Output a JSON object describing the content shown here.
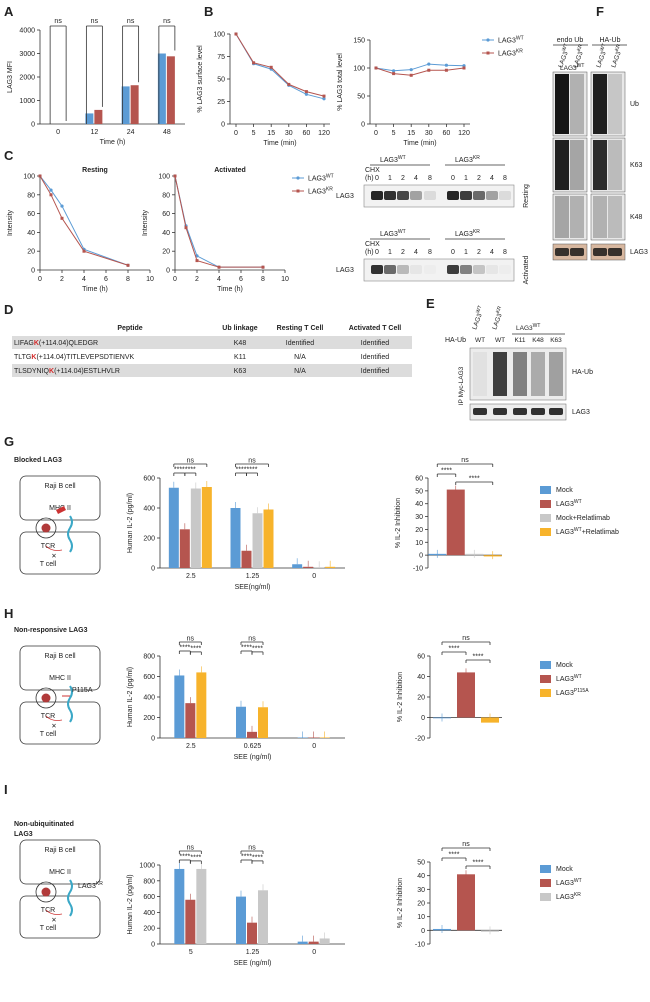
{
  "panels": {
    "A": "A",
    "B": "B",
    "C": "C",
    "D": "D",
    "E": "E",
    "F": "F",
    "G": "G",
    "H": "H",
    "I": "I"
  },
  "colors": {
    "blue": "#5b9bd5",
    "red": "#b5554f",
    "gray": "#c8c8c8",
    "orange": "#f7b32b"
  },
  "legend": {
    "wt": "LAG3",
    "wt_sup": "WT",
    "kr": "LAG3",
    "kr_sup": "KR"
  },
  "chart_data": [
    {
      "id": "A",
      "type": "bar",
      "categories": [
        "0",
        "12",
        "24",
        "48"
      ],
      "series": [
        {
          "name": "LAG3WT",
          "values": [
            0,
            450,
            1600,
            3000
          ]
        },
        {
          "name": "LAG3KR",
          "values": [
            0,
            600,
            1650,
            2880
          ]
        }
      ],
      "ylabel": "LAG3 MFI",
      "xlabel": "Time (h)",
      "ylim": [
        0,
        4000
      ],
      "yticks": [
        "0",
        "1000",
        "2000",
        "3000",
        "4000"
      ],
      "sig": [
        "ns",
        "ns",
        "ns",
        "ns"
      ]
    },
    {
      "id": "B1",
      "type": "line",
      "x": [
        "0",
        "5",
        "15",
        "30",
        "60",
        "120"
      ],
      "series": [
        {
          "name": "LAG3WT",
          "values": [
            100,
            67,
            61,
            43,
            33,
            28
          ]
        },
        {
          "name": "LAG3KR",
          "values": [
            100,
            68,
            63,
            44,
            36,
            31
          ]
        }
      ],
      "ylabel": "% LAG3 surface level",
      "xlabel": "Time (min)",
      "ylim": [
        0,
        100
      ],
      "yticks": [
        "0",
        "25",
        "50",
        "75",
        "100"
      ]
    },
    {
      "id": "B2",
      "type": "line",
      "x": [
        "0",
        "5",
        "15",
        "30",
        "60",
        "120"
      ],
      "series": [
        {
          "name": "LAG3WT",
          "values": [
            100,
            95,
            97,
            107,
            105,
            104
          ]
        },
        {
          "name": "LAG3KR",
          "values": [
            100,
            90,
            87,
            96,
            96,
            100
          ]
        }
      ],
      "ylabel": "% LAG3 total level",
      "xlabel": "Time (min)",
      "ylim": [
        0,
        150
      ],
      "yticks": [
        "0",
        "50",
        "100",
        "150"
      ]
    },
    {
      "id": "C1",
      "type": "line",
      "title": "Resting",
      "x": [
        0,
        1,
        2,
        4,
        8
      ],
      "series": [
        {
          "name": "LAG3WT",
          "values": [
            100,
            85,
            68,
            22,
            5
          ]
        },
        {
          "name": "LAG3KR",
          "values": [
            100,
            80,
            55,
            20,
            5
          ]
        }
      ],
      "ylabel": "Intensity",
      "xlabel": "Time (h)",
      "xlim": [
        0,
        10
      ],
      "ylim": [
        0,
        100
      ],
      "yticks": [
        "0",
        "20",
        "40",
        "60",
        "80",
        "100"
      ],
      "xticks": [
        "0",
        "2",
        "4",
        "6",
        "8",
        "10"
      ]
    },
    {
      "id": "C2",
      "type": "line",
      "title": "Activated",
      "x": [
        0,
        1,
        2,
        4,
        8
      ],
      "series": [
        {
          "name": "LAG3WT",
          "values": [
            100,
            47,
            15,
            3,
            3
          ]
        },
        {
          "name": "LAG3KR",
          "values": [
            100,
            45,
            10,
            3,
            3
          ]
        }
      ],
      "ylabel": "Intensity",
      "xlabel": "Time (h)",
      "xlim": [
        0,
        10
      ],
      "ylim": [
        0,
        100
      ],
      "yticks": [
        "0",
        "20",
        "40",
        "60",
        "80",
        "100"
      ],
      "xticks": [
        "0",
        "2",
        "4",
        "6",
        "8",
        "10"
      ]
    },
    {
      "id": "G1",
      "type": "bar",
      "categories": [
        "2.5",
        "1.25",
        "0"
      ],
      "series": [
        {
          "name": "Mock",
          "values": [
            535,
            400,
            25
          ]
        },
        {
          "name": "LAG3WT",
          "values": [
            258,
            115,
            8
          ]
        },
        {
          "name": "Mock+Relatlimab",
          "values": [
            530,
            365,
            5
          ]
        },
        {
          "name": "LAG3WT+Relatlimab",
          "values": [
            540,
            390,
            8
          ]
        }
      ],
      "ylabel": "Human IL-2 (pg/ml)",
      "xlabel": "SEE(ng/ml)",
      "ylim": [
        0,
        600
      ],
      "yticks": [
        "0",
        "200",
        "400",
        "600"
      ]
    },
    {
      "id": "G2",
      "type": "bar",
      "categories": [
        "Mock",
        "LAG3WT",
        "Mock+Relatlimab",
        "LAG3WT+Relatlimab"
      ],
      "values": [
        1,
        51,
        1,
        -1
      ],
      "ylabel": "% IL-2 Inhibition",
      "ylim": [
        -10,
        60
      ],
      "yticks": [
        "-10",
        "0",
        "10",
        "20",
        "30",
        "40",
        "50",
        "60"
      ]
    },
    {
      "id": "H1",
      "type": "bar",
      "categories": [
        "2.5",
        "0.625",
        "0"
      ],
      "series": [
        {
          "name": "Mock",
          "values": [
            610,
            305,
            5
          ]
        },
        {
          "name": "LAG3WT",
          "values": [
            340,
            60,
            5
          ]
        },
        {
          "name": "LAG3P115A",
          "values": [
            640,
            300,
            5
          ]
        }
      ],
      "ylabel": "Human IL-2 (pg/ml)",
      "xlabel": "SEE (ng/ml)",
      "ylim": [
        0,
        800
      ],
      "yticks": [
        "0",
        "200",
        "400",
        "600",
        "800"
      ]
    },
    {
      "id": "H2",
      "type": "bar",
      "categories": [
        "Mock",
        "LAG3WT",
        "LAG3P115A"
      ],
      "values": [
        0,
        44,
        -5
      ],
      "ylabel": "% IL-2 Inhibition",
      "ylim": [
        -20,
        60
      ],
      "yticks": [
        "-20",
        "0",
        "20",
        "40",
        "60"
      ]
    },
    {
      "id": "I1",
      "type": "bar",
      "categories": [
        "5",
        "1.25",
        "0"
      ],
      "series": [
        {
          "name": "Mock",
          "values": [
            950,
            600,
            30
          ]
        },
        {
          "name": "LAG3WT",
          "values": [
            560,
            270,
            30
          ]
        },
        {
          "name": "LAG3KR",
          "values": [
            950,
            680,
            70
          ]
        }
      ],
      "ylabel": "Human IL-2 (pg/ml)",
      "xlabel": "SEE (ng/ml)",
      "ylim": [
        0,
        1000
      ],
      "yticks": [
        "0",
        "200",
        "400",
        "600",
        "800",
        "1000"
      ]
    },
    {
      "id": "I2",
      "type": "bar",
      "categories": [
        "Mock",
        "LAG3WT",
        "LAG3KR"
      ],
      "values": [
        1,
        41,
        -1
      ],
      "ylabel": "% IL-2 Inhibition",
      "ylim": [
        -10,
        50
      ],
      "yticks": [
        "-10",
        "0",
        "10",
        "20",
        "30",
        "40",
        "50"
      ]
    }
  ],
  "tableD": {
    "headers": [
      "Peptide",
      "Ub linkage",
      "Resting T Cell",
      "Activated T Cell"
    ],
    "rows": [
      {
        "pre": "LIFAG",
        "k": "K",
        "post": "(+114.04)QLEDGR",
        "link": "K48",
        "rest": "Identified",
        "act": "Identified"
      },
      {
        "pre": "TLTG",
        "k": "K",
        "post": "(+114.04)TITLEVEPSDTIENVK",
        "link": "K11",
        "rest": "N/A",
        "act": "Identified"
      },
      {
        "pre": "TLSDYNIQ",
        "k": "K",
        "post": "(+114.04)ESTLHVLR",
        "link": "K63",
        "rest": "N/A",
        "act": "Identified"
      }
    ]
  },
  "blotC": {
    "chx": "CHX",
    "h": "(h)",
    "lanes": [
      "0",
      "1",
      "2",
      "4",
      "8"
    ],
    "wt": "LAG3",
    "kr": "LAG3",
    "lag3": "LAG3",
    "resting": "Resting",
    "activated": "Activated"
  },
  "blotE": {
    "haub": "HA-Ub",
    "lanes": [
      "WT",
      "WT",
      "K11",
      "K48",
      "K63"
    ],
    "ip": "IP Myc-LAG3",
    "rHA": "HA-Ub",
    "rLAG3": "LAG3"
  },
  "blotF": {
    "endo": "endo Ub",
    "ha": "HA-Ub",
    "rows": [
      "Ub",
      "K63",
      "K48",
      "LAG3"
    ]
  },
  "schem": {
    "G": "Blocked LAG3",
    "H": "Non-responsive LAG3",
    "I1": "Non-ubiquitinated",
    "I2": "LAG3",
    "raji": "Raji B cell",
    "mhc": "MHC II",
    "tcr": "TCR",
    "tcell": "T cell",
    "p115a": "P115A"
  },
  "legends": {
    "G": [
      "Mock",
      "LAG3",
      "Mock+Relatlimab",
      "LAG3"
    ],
    "G4b": "+Relatlimab",
    "H": [
      "Mock",
      "LAG3",
      "LAG3"
    ],
    "I": [
      "Mock",
      "LAG3",
      "LAG3"
    ],
    "sup": {
      "wt": "WT",
      "kr": "KR",
      "p": "P115A"
    }
  }
}
